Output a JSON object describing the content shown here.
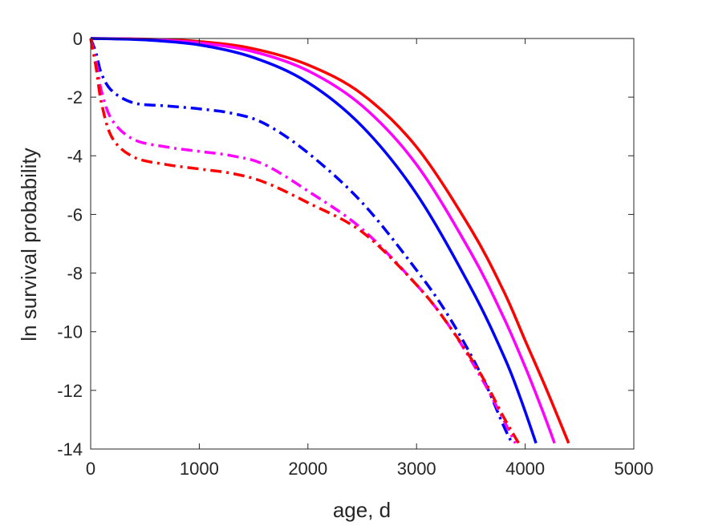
{
  "chart_data": {
    "type": "line",
    "title": "",
    "xlabel": "age, d",
    "ylabel": "ln survival probability",
    "xlim": [
      0,
      5000
    ],
    "ylim": [
      -14,
      0
    ],
    "xticks": [
      0,
      1000,
      2000,
      3000,
      4000,
      5000
    ],
    "yticks": [
      0,
      -2,
      -4,
      -6,
      -8,
      -10,
      -12,
      -14
    ],
    "xtick_labels": [
      "0",
      "1000",
      "2000",
      "3000",
      "4000",
      "5000"
    ],
    "ytick_labels": [
      "0",
      "-2",
      "-4",
      "-6",
      "-8",
      "-10",
      "-12",
      "-14"
    ],
    "grid": false,
    "legend": "none",
    "series": [
      {
        "color": "#ff0000",
        "style": "solid",
        "x": [
          0,
          500,
          1000,
          1500,
          2000,
          2500,
          3000,
          3500,
          3800,
          4000,
          4200,
          4400
        ],
        "y": [
          0,
          -0.02,
          -0.1,
          -0.35,
          -0.9,
          -1.9,
          -3.7,
          -6.5,
          -8.6,
          -10.3,
          -12.0,
          -13.8
        ]
      },
      {
        "color": "#ff00ff",
        "style": "solid",
        "x": [
          0,
          500,
          1000,
          1500,
          2000,
          2500,
          3000,
          3500,
          3800,
          4000,
          4150,
          4270
        ],
        "y": [
          0,
          -0.03,
          -0.15,
          -0.45,
          -1.1,
          -2.3,
          -4.3,
          -7.3,
          -9.5,
          -11.2,
          -12.6,
          -13.8
        ]
      },
      {
        "color": "#0000ff",
        "style": "solid",
        "x": [
          0,
          500,
          1000,
          1500,
          2000,
          2500,
          3000,
          3500,
          3800,
          3950,
          4100
        ],
        "y": [
          0,
          -0.05,
          -0.22,
          -0.65,
          -1.5,
          -3.0,
          -5.3,
          -8.5,
          -10.8,
          -12.2,
          -13.8
        ]
      },
      {
        "color": "#0000ff",
        "style": "dashdot",
        "x": [
          0,
          50,
          100,
          200,
          400,
          700,
          1000,
          1300,
          1600,
          2000,
          2500,
          3000,
          3300,
          3600,
          3800,
          3880
        ],
        "y": [
          0,
          -0.5,
          -1.2,
          -1.8,
          -2.2,
          -2.3,
          -2.4,
          -2.55,
          -2.9,
          -3.9,
          -5.6,
          -7.9,
          -9.5,
          -11.5,
          -13.2,
          -13.8
        ]
      },
      {
        "color": "#ff00ff",
        "style": "dashdot",
        "x": [
          0,
          50,
          100,
          200,
          400,
          700,
          1000,
          1300,
          1600,
          2000,
          2500,
          3000,
          3300,
          3600,
          3800,
          3910
        ],
        "y": [
          0,
          -0.8,
          -1.8,
          -2.8,
          -3.45,
          -3.7,
          -3.85,
          -4.0,
          -4.3,
          -5.2,
          -6.5,
          -8.4,
          -9.8,
          -11.6,
          -13.0,
          -13.8
        ]
      },
      {
        "color": "#ff0000",
        "style": "dashdot",
        "x": [
          0,
          50,
          100,
          200,
          400,
          700,
          1000,
          1300,
          1600,
          2000,
          2500,
          3000,
          3300,
          3600,
          3800,
          3940
        ],
        "y": [
          0,
          -1.0,
          -2.2,
          -3.4,
          -4.05,
          -4.3,
          -4.45,
          -4.6,
          -4.9,
          -5.6,
          -6.6,
          -8.4,
          -9.8,
          -11.5,
          -12.9,
          -13.8
        ]
      }
    ]
  }
}
